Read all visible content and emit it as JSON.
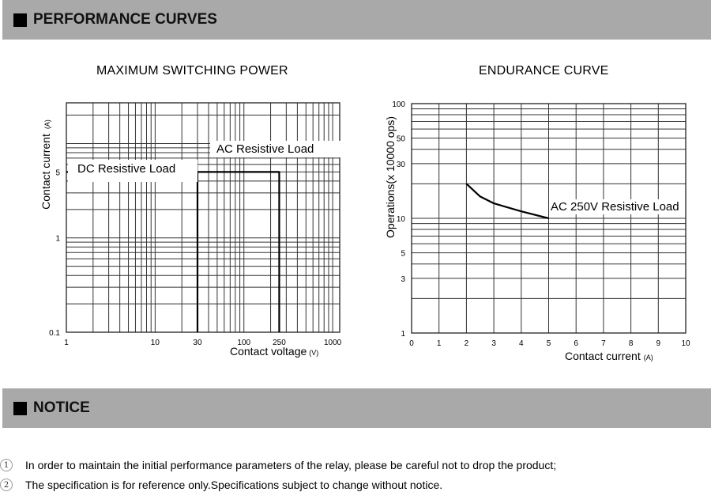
{
  "sections": {
    "performance_title": "PERFORMANCE CURVES",
    "notice_title": "NOTICE"
  },
  "notices": [
    {
      "num": "1",
      "text": "In order to maintain the initial performance parameters of the relay, please be careful not to drop the product;"
    },
    {
      "num": "2",
      "text": "The specification is for reference only.Specifications subject to change without notice."
    }
  ],
  "chart_data": [
    {
      "type": "line",
      "title": "MAXIMUM SWITCHING POWER",
      "xlabel": "Contact voltage",
      "x_unit": "(V)",
      "ylabel": "Contact current",
      "y_unit": "(A)",
      "xscale": "log",
      "yscale": "log",
      "xlim": [
        1,
        1200
      ],
      "ylim": [
        0.1,
        27
      ],
      "grid": true,
      "x_ticks": [
        {
          "v": 1,
          "label": "1"
        },
        {
          "v": 10,
          "label": "10"
        },
        {
          "v": 30,
          "label": "30"
        },
        {
          "v": 100,
          "label": "100"
        },
        {
          "v": 250,
          "label": "250"
        },
        {
          "v": 1000,
          "label": "1000"
        }
      ],
      "y_ticks": [
        {
          "v": 0.1,
          "label": "0.1"
        },
        {
          "v": 1,
          "label": "1"
        },
        {
          "v": 5,
          "label": "5"
        }
      ],
      "series": [
        {
          "name": "DC Resistive Load",
          "points": [
            [
              1,
              5
            ],
            [
              30,
              5
            ],
            [
              30,
              0.1
            ]
          ]
        },
        {
          "name": "AC Resistive Load",
          "points": [
            [
              30,
              5
            ],
            [
              250,
              5
            ],
            [
              250,
              0.1
            ]
          ]
        }
      ]
    },
    {
      "type": "line",
      "title": "ENDURANCE CURVE",
      "xlabel": "Contact current",
      "x_unit": "(A)",
      "ylabel": "Operations(x 10000 ops)",
      "xscale": "linear",
      "yscale": "log",
      "xlim": [
        0,
        10
      ],
      "ylim": [
        1,
        100
      ],
      "grid": true,
      "x_ticks": [
        {
          "v": 0,
          "label": "0"
        },
        {
          "v": 1,
          "label": "1"
        },
        {
          "v": 2,
          "label": "2"
        },
        {
          "v": 3,
          "label": "3"
        },
        {
          "v": 4,
          "label": "4"
        },
        {
          "v": 5,
          "label": "5"
        },
        {
          "v": 6,
          "label": "6"
        },
        {
          "v": 7,
          "label": "7"
        },
        {
          "v": 8,
          "label": "8"
        },
        {
          "v": 9,
          "label": "9"
        },
        {
          "v": 10,
          "label": "10"
        }
      ],
      "y_ticks": [
        {
          "v": 1,
          "label": "1"
        },
        {
          "v": 3,
          "label": "3"
        },
        {
          "v": 5,
          "label": "5"
        },
        {
          "v": 10,
          "label": "10"
        },
        {
          "v": 30,
          "label": "30"
        },
        {
          "v": 50,
          "label": "50"
        },
        {
          "v": 100,
          "label": "100"
        }
      ],
      "series": [
        {
          "name": "AC 250V Resistive Load",
          "points": [
            [
              2,
              20
            ],
            [
              2.5,
              15.5
            ],
            [
              3,
              13.5
            ],
            [
              4,
              11.5
            ],
            [
              5,
              10
            ]
          ]
        }
      ]
    }
  ]
}
